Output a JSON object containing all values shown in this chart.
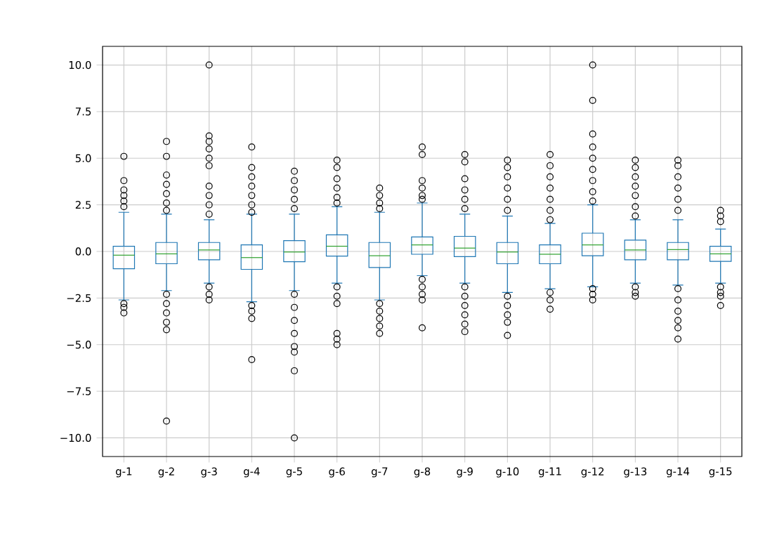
{
  "chart_data": {
    "type": "box",
    "categories": [
      "g-1",
      "g-2",
      "g-3",
      "g-4",
      "g-5",
      "g-6",
      "g-7",
      "g-8",
      "g-9",
      "g-10",
      "g-11",
      "g-12",
      "g-13",
      "g-14",
      "g-15"
    ],
    "series": [
      {
        "color": "#1f77b4",
        "boxes": [
          {
            "low": -2.6,
            "q1": -0.93,
            "median": -0.2,
            "q3": 0.28,
            "high": 2.1,
            "outliers": [
              5.1,
              3.8,
              3.3,
              3.0,
              2.7,
              2.4,
              -2.8,
              -3.0,
              -3.3
            ]
          },
          {
            "low": -2.1,
            "q1": -0.66,
            "median": -0.13,
            "q3": 0.48,
            "high": 2.0,
            "outliers": [
              5.9,
              5.1,
              4.1,
              3.6,
              3.1,
              2.6,
              2.2,
              -2.3,
              -2.8,
              -3.3,
              -3.8,
              -4.2,
              -9.1
            ]
          },
          {
            "low": -1.7,
            "q1": -0.45,
            "median": 0.08,
            "q3": 0.48,
            "high": 1.7,
            "outliers": [
              10.0,
              6.2,
              5.9,
              5.5,
              5.0,
              4.6,
              3.5,
              3.0,
              2.5,
              2.0,
              -1.9,
              -2.3,
              -2.6
            ]
          },
          {
            "low": -2.7,
            "q1": -0.96,
            "median": -0.33,
            "q3": 0.35,
            "high": 2.0,
            "outliers": [
              5.6,
              4.5,
              4.0,
              3.5,
              3.0,
              2.5,
              2.1,
              -2.9,
              -3.2,
              -3.6,
              -5.8
            ]
          },
          {
            "low": -2.1,
            "q1": -0.55,
            "median": -0.03,
            "q3": 0.58,
            "high": 2.0,
            "outliers": [
              4.3,
              3.8,
              3.3,
              2.8,
              2.3,
              -2.3,
              -3.0,
              -3.7,
              -4.4,
              -5.1,
              -5.4,
              -6.4,
              -10.0
            ]
          },
          {
            "low": -1.7,
            "q1": -0.25,
            "median": 0.28,
            "q3": 0.89,
            "high": 2.4,
            "outliers": [
              4.9,
              4.5,
              3.9,
              3.4,
              2.9,
              2.6,
              -1.9,
              -2.4,
              -2.8,
              -4.4,
              -4.7,
              -5.0
            ]
          },
          {
            "low": -2.6,
            "q1": -0.86,
            "median": -0.23,
            "q3": 0.48,
            "high": 2.1,
            "outliers": [
              3.4,
              3.0,
              2.6,
              2.3,
              -2.8,
              -3.2,
              -3.6,
              -4.0,
              -4.4
            ]
          },
          {
            "low": -1.3,
            "q1": -0.15,
            "median": 0.35,
            "q3": 0.78,
            "high": 2.6,
            "outliers": [
              5.6,
              5.2,
              3.8,
              3.4,
              3.0,
              2.8,
              -1.5,
              -1.9,
              -2.3,
              -2.6,
              -4.1
            ]
          },
          {
            "low": -1.7,
            "q1": -0.28,
            "median": 0.18,
            "q3": 0.81,
            "high": 2.0,
            "outliers": [
              5.2,
              4.8,
              3.9,
              3.3,
              2.8,
              2.3,
              -1.9,
              -2.4,
              -2.9,
              -3.4,
              -3.9,
              -4.3
            ]
          },
          {
            "low": -2.2,
            "q1": -0.66,
            "median": -0.03,
            "q3": 0.48,
            "high": 1.9,
            "outliers": [
              4.9,
              4.5,
              4.0,
              3.4,
              2.8,
              2.2,
              -2.4,
              -2.9,
              -3.4,
              -3.8,
              -4.5
            ]
          },
          {
            "low": -2.0,
            "q1": -0.66,
            "median": -0.15,
            "q3": 0.35,
            "high": 1.5,
            "outliers": [
              5.2,
              4.6,
              4.0,
              3.4,
              2.8,
              2.2,
              1.7,
              -2.2,
              -2.6,
              -3.1
            ]
          },
          {
            "low": -1.9,
            "q1": -0.23,
            "median": 0.35,
            "q3": 0.98,
            "high": 2.5,
            "outliers": [
              10.0,
              8.1,
              6.3,
              5.6,
              5.0,
              4.4,
              3.8,
              3.2,
              2.7,
              -2.0,
              -2.3,
              -2.6
            ]
          },
          {
            "low": -1.7,
            "q1": -0.45,
            "median": 0.08,
            "q3": 0.61,
            "high": 1.7,
            "outliers": [
              4.9,
              4.5,
              4.0,
              3.5,
              3.0,
              2.4,
              1.9,
              -1.9,
              -2.2,
              -2.4
            ]
          },
          {
            "low": -1.8,
            "q1": -0.45,
            "median": 0.1,
            "q3": 0.48,
            "high": 1.7,
            "outliers": [
              4.9,
              4.6,
              4.0,
              3.4,
              2.8,
              2.2,
              -2.0,
              -2.6,
              -3.2,
              -3.7,
              -4.1,
              -4.7
            ]
          },
          {
            "low": -1.7,
            "q1": -0.53,
            "median": -0.13,
            "q3": 0.28,
            "high": 1.2,
            "outliers": [
              2.2,
              1.9,
              1.6,
              -1.9,
              -2.2,
              -2.4,
              -2.9
            ]
          }
        ]
      }
    ],
    "ylim": [
      -11,
      11
    ],
    "yticks": [
      {
        "value": -10,
        "label": "−10.0"
      },
      {
        "value": -7.5,
        "label": "−7.5"
      },
      {
        "value": -5,
        "label": "−5.0"
      },
      {
        "value": -2.5,
        "label": "−2.5"
      },
      {
        "value": 0,
        "label": "0.0"
      },
      {
        "value": 2.5,
        "label": "2.5"
      },
      {
        "value": 5,
        "label": "5.0"
      },
      {
        "value": 7.5,
        "label": "7.5"
      },
      {
        "value": 10,
        "label": "10.0"
      }
    ],
    "grid": true,
    "marker": "circle"
  }
}
